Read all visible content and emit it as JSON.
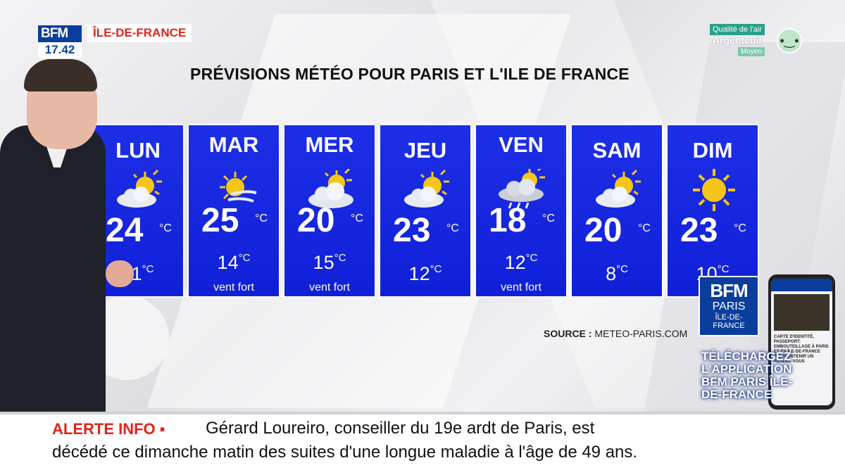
{
  "channel": {
    "logo": "BFM",
    "time": "17.42",
    "region": "ÎLE-DE-FRANCE"
  },
  "air_quality": {
    "label": "Qualité de l'air",
    "city": "Argenteuil",
    "level": "Moyen"
  },
  "title": "PRÉVISIONS MÉTÉO POUR PARIS ET L'ILE DE FRANCE",
  "unit": "°C",
  "forecast": [
    {
      "day": "LUN",
      "high": "24",
      "low": "11",
      "note": "",
      "icon": "sun-behind-cloud-icon"
    },
    {
      "day": "MAR",
      "high": "25",
      "low": "14",
      "note": "vent fort",
      "icon": "sun-wind-icon"
    },
    {
      "day": "MER",
      "high": "20",
      "low": "15",
      "note": "vent fort",
      "icon": "cloud-sun-icon"
    },
    {
      "day": "JEU",
      "high": "23",
      "low": "12",
      "note": "",
      "icon": "sun-behind-cloud-icon"
    },
    {
      "day": "VEN",
      "high": "18",
      "low": "12",
      "note": "vent fort",
      "icon": "rain-cloud-icon"
    },
    {
      "day": "SAM",
      "high": "20",
      "low": "8",
      "note": "",
      "icon": "sun-behind-cloud-icon"
    },
    {
      "day": "DIM",
      "high": "23",
      "low": "10",
      "note": "",
      "icon": "sun-icon"
    }
  ],
  "source": {
    "label": "SOURCE :",
    "value": "METEO-PARIS.COM"
  },
  "promo": {
    "logo": "BFM",
    "logo_city": "PARIS",
    "logo_region": "ÎLE-DE-FRANCE",
    "cta": "TÉLÉCHARGEZ L'APPLICATION BFM PARIS ÎLE-DE-FRANCE",
    "phone_text": "CARTE D'IDENTITÉ, PASSEPORT: EMBOUTEILLAGE À PARIS ET EN ÎLE-DE-FRANCE POUR OBTENIR UN RENDEZ-VOUS"
  },
  "ticker": {
    "label": "ALERTE INFO ▪",
    "line1": "Gérard Loureiro, conseiller du 19e ardt de Paris, est",
    "line2": "décédé ce dimanche matin des suites d'une longue maladie à l'âge de 49 ans."
  },
  "colors": {
    "card_blue": "#1020d8",
    "alert_red": "#e2231a",
    "bfm_blue": "#0b3e9c"
  }
}
